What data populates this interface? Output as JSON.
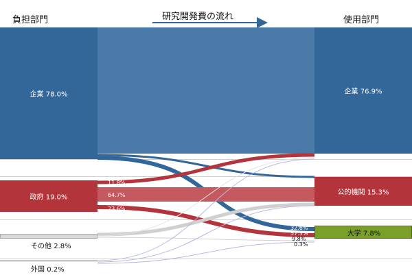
{
  "headers": {
    "source": "負担部門",
    "flow": "研究開発費の流れ",
    "target": "使用部門"
  },
  "sources": [
    {
      "name": "企業",
      "share": "78.0%",
      "color": "#336699"
    },
    {
      "name": "政府",
      "share": "19.0%",
      "color": "#b3343a"
    },
    {
      "name": "その他",
      "share": "2.8%",
      "color": "#d9d9d9"
    },
    {
      "name": "外国",
      "share": "0.2%",
      "color": "#ffffff"
    }
  ],
  "targets": [
    {
      "name": "企業",
      "share": "76.9%",
      "color": "#336699"
    },
    {
      "name": "公的機関",
      "share": "15.3%",
      "color": "#b3343a"
    },
    {
      "name": "大学",
      "share": "7.8%",
      "color": "#7aa02a"
    }
  ],
  "government_split": [
    "11.8%",
    "64.7%",
    "23.6%"
  ],
  "university_split": [
    "32.6%",
    "57.3%",
    "9.8%",
    "0.3%"
  ]
}
